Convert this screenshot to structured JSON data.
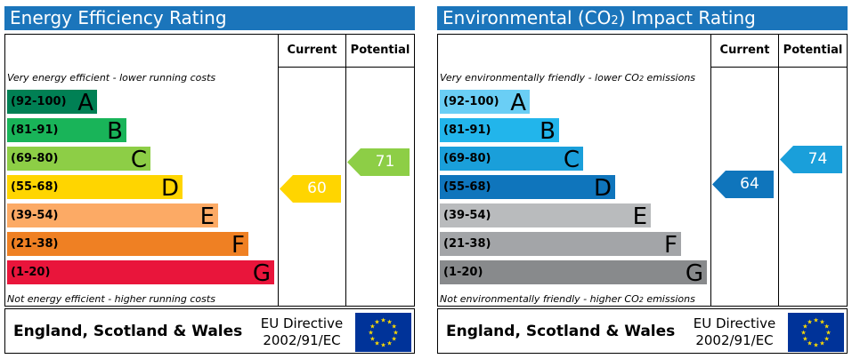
{
  "chart_data": [
    {
      "type": "bar",
      "title": "Energy Efficiency Rating",
      "columns": [
        "Current",
        "Potential"
      ],
      "top_note": "Very energy efficient - lower running costs",
      "bottom_note": "Not energy efficient - higher running costs",
      "bands": [
        {
          "range": "(92-100)",
          "letter": "A",
          "color": "#008054",
          "dark_text": true
        },
        {
          "range": "(81-91)",
          "letter": "B",
          "color": "#19b459",
          "dark_text": true
        },
        {
          "range": "(69-80)",
          "letter": "C",
          "color": "#8dce46",
          "dark_text": true
        },
        {
          "range": "(55-68)",
          "letter": "D",
          "color": "#ffd500",
          "dark_text": true
        },
        {
          "range": "(39-54)",
          "letter": "E",
          "color": "#fcaa65",
          "dark_text": true
        },
        {
          "range": "(21-38)",
          "letter": "F",
          "color": "#ef8023",
          "dark_text": true
        },
        {
          "range": "(1-20)",
          "letter": "G",
          "color": "#e9153b",
          "dark_text": true
        }
      ],
      "current": {
        "value": 60,
        "color": "#ffd500"
      },
      "potential": {
        "value": 71,
        "color": "#8dce46"
      },
      "footer": {
        "region": "England, Scotland & Wales",
        "directive_line1": "EU Directive",
        "directive_line2": "2002/91/EC"
      }
    },
    {
      "type": "bar",
      "title_prefix": "Environmental (CO",
      "title_sub": "2",
      "title_suffix": ") Impact Rating",
      "columns": [
        "Current",
        "Potential"
      ],
      "top_note_prefix": "Very environmentally friendly - lower CO",
      "top_note_sub": "2",
      "top_note_suffix": " emissions",
      "bottom_note_prefix": "Not environmentally friendly - higher CO",
      "bottom_note_sub": "2",
      "bottom_note_suffix": " emissions",
      "bands": [
        {
          "range": "(92-100)",
          "letter": "A",
          "color": "#6acef5",
          "dark_text": true
        },
        {
          "range": "(81-91)",
          "letter": "B",
          "color": "#22b5eb",
          "dark_text": true
        },
        {
          "range": "(69-80)",
          "letter": "C",
          "color": "#1a9fda",
          "dark_text": true
        },
        {
          "range": "(55-68)",
          "letter": "D",
          "color": "#0f75bc",
          "dark_text": true
        },
        {
          "range": "(39-54)",
          "letter": "E",
          "color": "#b9bbbd",
          "dark_text": true
        },
        {
          "range": "(21-38)",
          "letter": "F",
          "color": "#a3a5a8",
          "dark_text": true
        },
        {
          "range": "(1-20)",
          "letter": "G",
          "color": "#888a8c",
          "dark_text": true
        }
      ],
      "current": {
        "value": 64,
        "color": "#0f75bc"
      },
      "potential": {
        "value": 74,
        "color": "#1a9fda"
      },
      "footer": {
        "region": "England, Scotland & Wales",
        "directive_line1": "EU Directive",
        "directive_line2": "2002/91/EC"
      }
    }
  ]
}
